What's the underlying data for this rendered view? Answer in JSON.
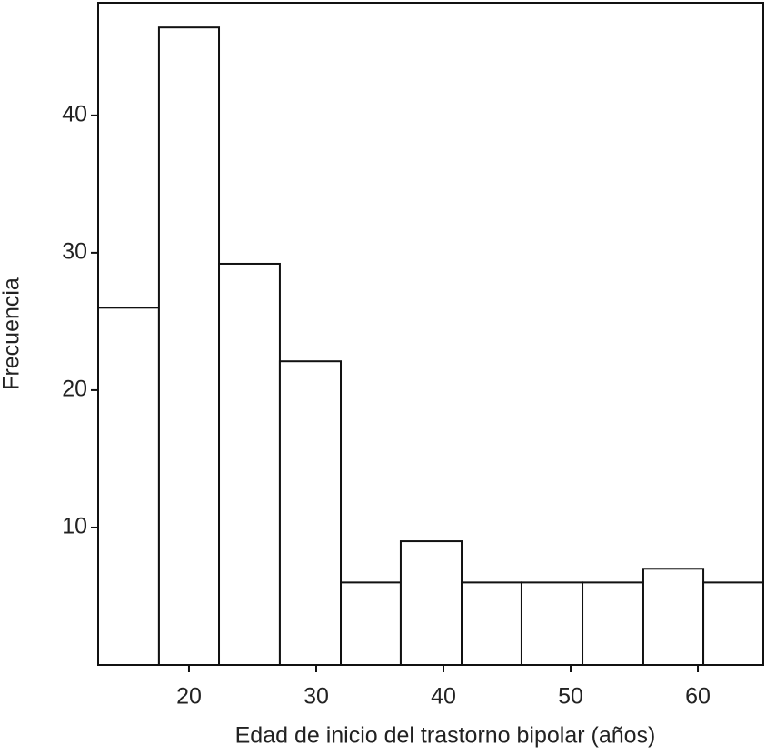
{
  "chart_data": {
    "type": "histogram",
    "xlabel": "Edad de inicio del trastorno bipolar (años)",
    "ylabel": "Frecuencia",
    "bins": [
      12.86,
      17.64,
      22.36,
      27.14,
      31.93,
      36.64,
      41.43,
      46.14,
      50.93,
      55.71,
      60.43,
      65.14
    ],
    "values": [
      26,
      46.4,
      29.2,
      22.1,
      6,
      9,
      6,
      6,
      6,
      7,
      6
    ],
    "color": "#ffffff",
    "xlim": [
      12.86,
      65.14
    ],
    "xticks": [
      20,
      30,
      40,
      50,
      60
    ],
    "ylim": [
      0,
      48.2
    ],
    "yticks": [
      10,
      20,
      30,
      40
    ]
  }
}
